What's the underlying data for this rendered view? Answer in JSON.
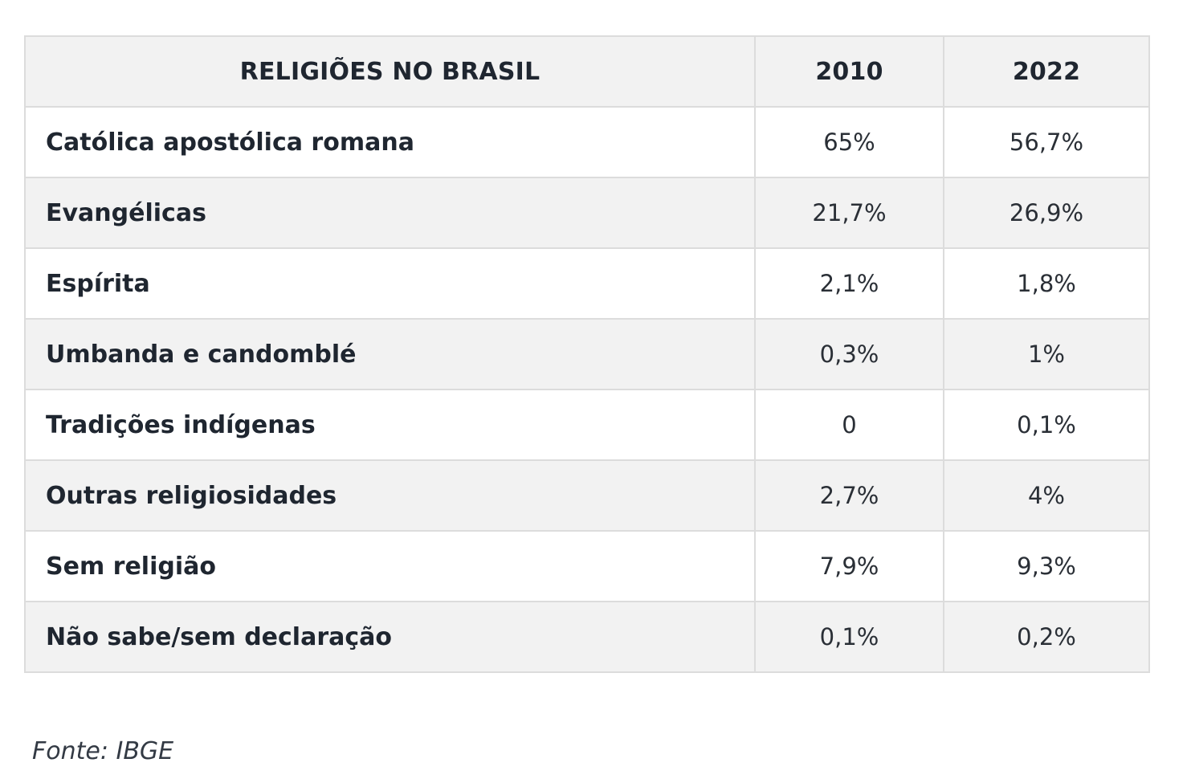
{
  "table": {
    "headers": [
      "RELIGIÕES NO BRASIL",
      "2010",
      "2022"
    ],
    "rows": [
      {
        "religion": "Católica apostólica romana",
        "y2010": "65%",
        "y2022": "56,7%"
      },
      {
        "religion": "Evangélicas",
        "y2010": "21,7%",
        "y2022": "26,9%"
      },
      {
        "religion": "Espírita",
        "y2010": "2,1%",
        "y2022": "1,8%"
      },
      {
        "religion": "Umbanda e candomblé",
        "y2010": "0,3%",
        "y2022": "1%"
      },
      {
        "religion": "Tradições indígenas",
        "y2010": "0",
        "y2022": "0,1%"
      },
      {
        "religion": "Outras religiosidades",
        "y2010": "2,7%",
        "y2022": "4%"
      },
      {
        "religion": "Sem religião",
        "y2010": "7,9%",
        "y2022": "9,3%"
      },
      {
        "religion": "Não sabe/sem declaração",
        "y2010": "0,1%",
        "y2022": "0,2%"
      }
    ]
  },
  "source": "Fonte: IBGE"
}
